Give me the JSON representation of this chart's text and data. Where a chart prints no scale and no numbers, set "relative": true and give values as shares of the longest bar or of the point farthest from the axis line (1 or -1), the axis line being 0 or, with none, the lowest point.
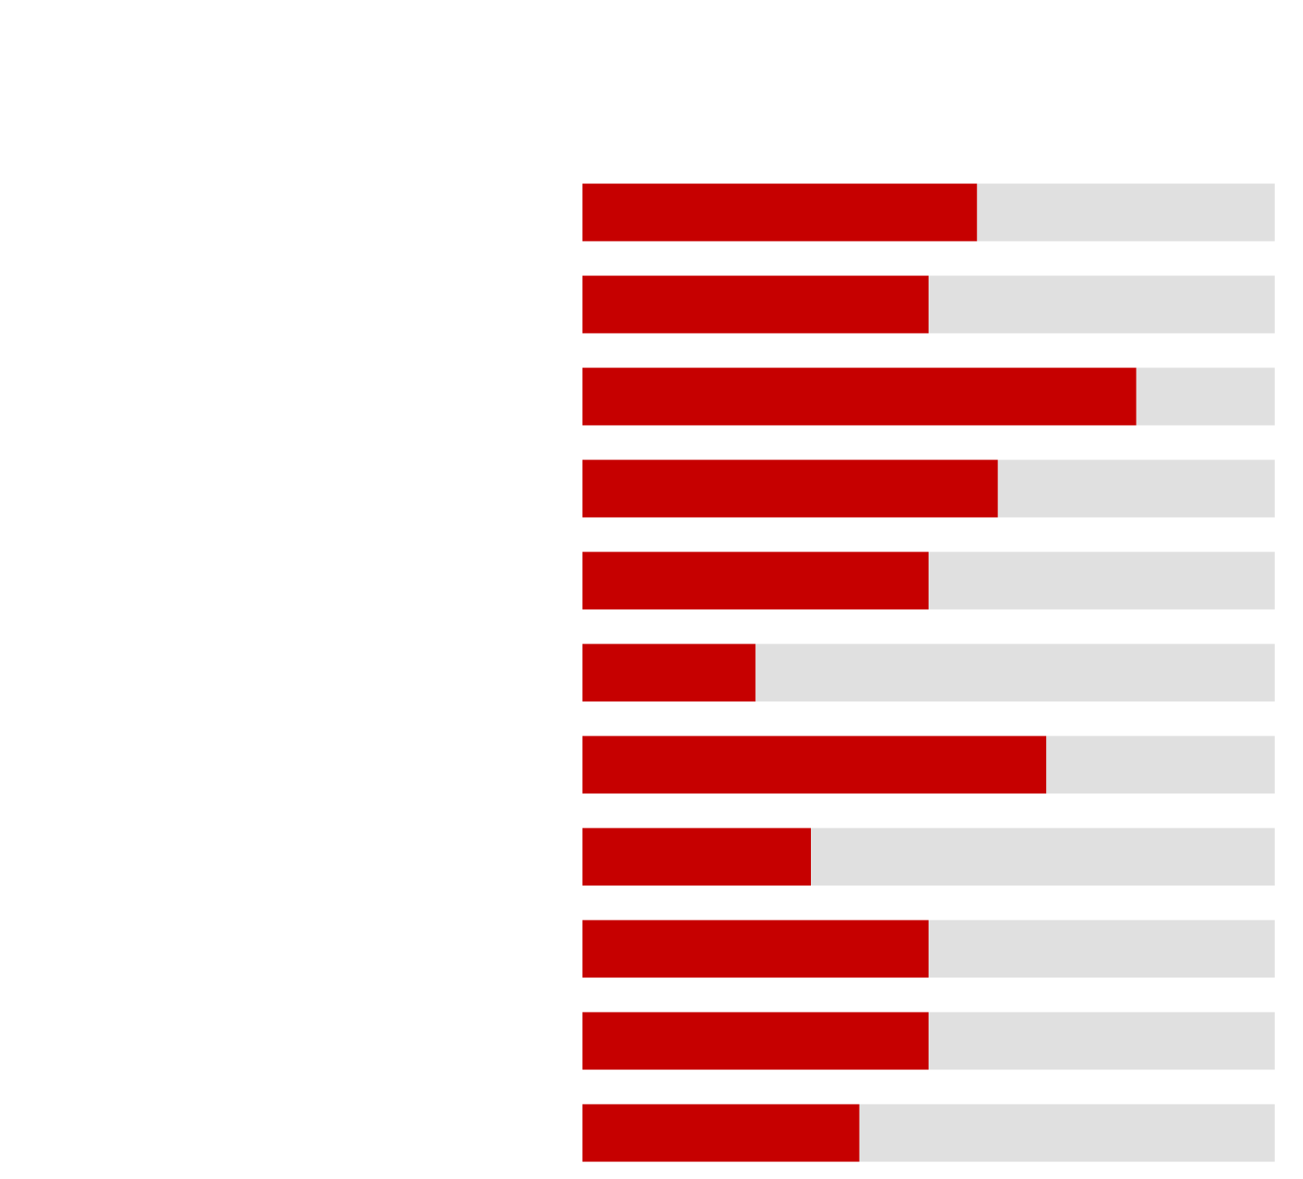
{
  "chart_data": {
    "type": "bar",
    "orientation": "horizontal",
    "stacked": true,
    "relative": true,
    "categories": [
      null,
      null,
      null,
      null,
      null,
      null,
      null,
      null,
      null,
      null,
      null
    ],
    "series": [
      {
        "color": "#c60000",
        "values": [
          0.57,
          0.5,
          0.8,
          0.6,
          0.5,
          0.25,
          0.67,
          0.33,
          0.5,
          0.5,
          0.4
        ]
      },
      {
        "color": "#e0e0e0",
        "values": [
          0.43,
          0.5,
          0.2,
          0.4,
          0.5,
          0.75,
          0.33,
          0.67,
          0.5,
          0.5,
          0.6
        ]
      }
    ]
  }
}
